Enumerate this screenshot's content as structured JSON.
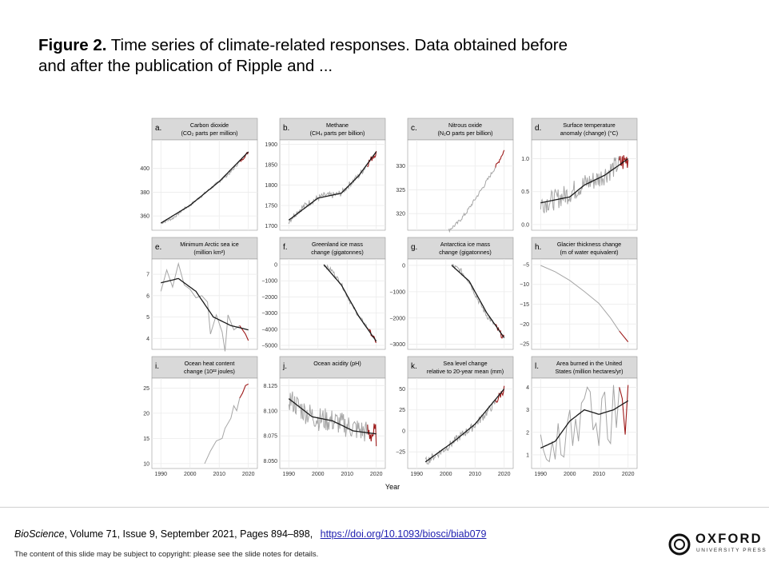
{
  "slide": {
    "title_bold": "Figure 2.",
    "title_rest": " Time series of climate-related responses. Data obtained before and after the publication of Ripple and ..."
  },
  "citation": {
    "journal": "BioScience",
    "details": ", Volume 71, Issue 9, September 2021, Pages 894–898, ",
    "doi": "https://doi.org/10.1093/biosci/biab079"
  },
  "copyright": "The content of this slide may be subject to copyright: please see the slide notes for details.",
  "logo": {
    "word": "OXFORD",
    "sub": "UNIVERSITY PRESS"
  },
  "colors": {
    "before": "#a6a6a6",
    "after": "#9e1b1b",
    "trend": "#1a1a1a",
    "strip": "#d9d9d9",
    "grid": "#ebebeb"
  },
  "chart_data": {
    "type": "line",
    "x_label": "Year",
    "x_ticks": [
      1990,
      2000,
      2010,
      2020
    ],
    "panels": [
      {
        "letter": "a.",
        "title": [
          "Carbon dioxide",
          "(CO₂ parts per million)"
        ],
        "yticks": [
          360,
          380,
          400
        ],
        "yticklabels": [
          "360",
          "380",
          "400"
        ],
        "ylim": [
          350,
          422
        ],
        "series": [
          [
            1990,
            354
          ],
          [
            1992,
            356
          ],
          [
            1994,
            358
          ],
          [
            1996,
            362
          ],
          [
            1998,
            366
          ],
          [
            2000,
            369
          ],
          [
            2002,
            373
          ],
          [
            2004,
            377
          ],
          [
            2006,
            381
          ],
          [
            2008,
            385
          ],
          [
            2010,
            389
          ],
          [
            2012,
            393
          ],
          [
            2014,
            397
          ],
          [
            2016,
            403
          ],
          [
            2018,
            408
          ],
          [
            2020,
            414
          ]
        ],
        "recent_from": 2017,
        "noise": 1.2,
        "trend": [
          [
            1990,
            354
          ],
          [
            2000,
            369
          ],
          [
            2010,
            389
          ],
          [
            2020,
            414
          ]
        ]
      },
      {
        "letter": "b.",
        "title": [
          "Methane",
          "(CH₄ parts per billion)"
        ],
        "yticks": [
          1700,
          1750,
          1800,
          1850,
          1900
        ],
        "yticklabels": [
          "1700",
          "1750",
          "1800",
          "1850",
          "1900"
        ],
        "ylim": [
          1695,
          1905
        ],
        "series": [
          [
            1990,
            1712
          ],
          [
            1993,
            1735
          ],
          [
            1996,
            1752
          ],
          [
            1999,
            1765
          ],
          [
            2002,
            1774
          ],
          [
            2005,
            1775
          ],
          [
            2008,
            1780
          ],
          [
            2011,
            1803
          ],
          [
            2014,
            1823
          ],
          [
            2017,
            1852
          ],
          [
            2020,
            1880
          ]
        ],
        "recent_from": 2017,
        "noise": 8,
        "trend": [
          [
            1990,
            1714
          ],
          [
            2000,
            1768
          ],
          [
            2008,
            1780
          ],
          [
            2014,
            1823
          ],
          [
            2020,
            1882
          ]
        ]
      },
      {
        "letter": "c.",
        "title": [
          "Nitrous oxide",
          "(N₂O parts per billion)"
        ],
        "yticks": [
          320,
          325,
          330
        ],
        "yticklabels": [
          "320",
          "325",
          "330"
        ],
        "ylim": [
          317,
          335
        ],
        "series": [
          [
            2001,
            316.5
          ],
          [
            2004,
            318
          ],
          [
            2007,
            320.2
          ],
          [
            2010,
            323
          ],
          [
            2013,
            325.8
          ],
          [
            2016,
            328.8
          ],
          [
            2018,
            330.8
          ],
          [
            2020,
            333.3
          ]
        ],
        "recent_from": 2017,
        "noise": 0.4,
        "trend": null
      },
      {
        "letter": "d.",
        "title": [
          "Surface temperature",
          "anomaly (change) (°C)"
        ],
        "yticks": [
          0.0,
          0.5,
          1.0
        ],
        "yticklabels": [
          "0.0",
          "0.5",
          "1.0"
        ],
        "ylim": [
          -0.05,
          1.25
        ],
        "series": [
          [
            1990,
            0.32
          ],
          [
            1995,
            0.38
          ],
          [
            2000,
            0.48
          ],
          [
            2005,
            0.62
          ],
          [
            2010,
            0.7
          ],
          [
            2015,
            0.86
          ],
          [
            2020,
            1.0
          ]
        ],
        "recent_from": 2017,
        "noise": 0.16,
        "trend": [
          [
            1990,
            0.33
          ],
          [
            2000,
            0.42
          ],
          [
            2005,
            0.6
          ],
          [
            2012,
            0.75
          ],
          [
            2020,
            1.0
          ]
        ]
      },
      {
        "letter": "e.",
        "title": [
          "Minimum Arctic sea ice",
          "(million km²)"
        ],
        "yticks": [
          4,
          5,
          6,
          7
        ],
        "yticklabels": [
          "4",
          "5",
          "6",
          "7"
        ],
        "ylim": [
          3.6,
          7.6
        ],
        "series": [
          [
            1990,
            6.2
          ],
          [
            1992,
            7.2
          ],
          [
            1994,
            6.4
          ],
          [
            1996,
            7.5
          ],
          [
            1998,
            6.5
          ],
          [
            2000,
            6.3
          ],
          [
            2002,
            5.9
          ],
          [
            2004,
            6.0
          ],
          [
            2006,
            5.7
          ],
          [
            2007,
            4.2
          ],
          [
            2009,
            5.1
          ],
          [
            2011,
            4.3
          ],
          [
            2012,
            3.4
          ],
          [
            2013,
            5.1
          ],
          [
            2015,
            4.4
          ],
          [
            2017,
            4.6
          ],
          [
            2019,
            4.2
          ],
          [
            2020,
            3.9
          ]
        ],
        "recent_from": 2017,
        "noise": 0,
        "trend": [
          [
            1990,
            6.6
          ],
          [
            1996,
            6.8
          ],
          [
            2002,
            6.2
          ],
          [
            2008,
            5.0
          ],
          [
            2014,
            4.6
          ],
          [
            2020,
            4.4
          ]
        ]
      },
      {
        "letter": "f.",
        "title": [
          "Greenland ice mass",
          "change (gigatonnes)"
        ],
        "yticks": [
          0,
          -1000,
          -2000,
          -3000,
          -4000,
          -5000
        ],
        "yticklabels": [
          "0",
          "−1000",
          "−2000",
          "−3000",
          "−4000",
          "−5000"
        ],
        "ylim": [
          -5100,
          200
        ],
        "series": [
          [
            2002,
            0
          ],
          [
            2005,
            -400
          ],
          [
            2008,
            -1200
          ],
          [
            2011,
            -2300
          ],
          [
            2014,
            -3200
          ],
          [
            2017,
            -3900
          ],
          [
            2020,
            -4800
          ]
        ],
        "recent_from": 2017,
        "noise": 120,
        "trend": [
          [
            2002,
            0
          ],
          [
            2008,
            -1250
          ],
          [
            2014,
            -3200
          ],
          [
            2020,
            -4750
          ]
        ]
      },
      {
        "letter": "g.",
        "title": [
          "Antarctica ice mass",
          "change (gigatonnes)"
        ],
        "yticks": [
          0,
          -1000,
          -2000,
          -3000
        ],
        "yticklabels": [
          "0",
          "−1000",
          "−2000",
          "−3000"
        ],
        "ylim": [
          -3100,
          150
        ],
        "series": [
          [
            2002,
            0
          ],
          [
            2005,
            -200
          ],
          [
            2008,
            -600
          ],
          [
            2011,
            -1300
          ],
          [
            2014,
            -1900
          ],
          [
            2017,
            -2300
          ],
          [
            2020,
            -2800
          ]
        ],
        "recent_from": 2017,
        "noise": 110,
        "trend": [
          [
            2002,
            0
          ],
          [
            2008,
            -600
          ],
          [
            2014,
            -1800
          ],
          [
            2020,
            -2750
          ]
        ]
      },
      {
        "letter": "h.",
        "title": [
          "Glacier thickness change",
          "(m of water equivalent)"
        ],
        "yticks": [
          -5,
          -10,
          -15,
          -20,
          -25
        ],
        "yticklabels": [
          "−5",
          "−10",
          "−15",
          "−20",
          "−25"
        ],
        "ylim": [
          -25.8,
          -4.2
        ],
        "series": [
          [
            1990,
            -5.2
          ],
          [
            1995,
            -6.8
          ],
          [
            2000,
            -9
          ],
          [
            2005,
            -11.8
          ],
          [
            2010,
            -14.8
          ],
          [
            2014,
            -18.5
          ],
          [
            2017,
            -21.8
          ],
          [
            2020,
            -24.5
          ]
        ],
        "recent_from": 2017,
        "noise": 0,
        "trend": null
      },
      {
        "letter": "i.",
        "title": [
          "Ocean heat content",
          "change (10²² joules)"
        ],
        "yticks": [
          10,
          15,
          20,
          25
        ],
        "yticklabels": [
          "10",
          "15",
          "20",
          "25"
        ],
        "ylim": [
          9.5,
          26.5
        ],
        "series": [
          [
            2005,
            10
          ],
          [
            2007,
            12.5
          ],
          [
            2009,
            14.5
          ],
          [
            2011,
            15
          ],
          [
            2012,
            17
          ],
          [
            2014,
            19
          ],
          [
            2015,
            21.5
          ],
          [
            2016,
            20.5
          ],
          [
            2017,
            23
          ],
          [
            2018,
            24
          ],
          [
            2019,
            25.5
          ],
          [
            2020,
            25.8
          ]
        ],
        "recent_from": 2017,
        "noise": 0,
        "trend": null
      },
      {
        "letter": "j.",
        "title": [
          "Ocean acidity (pH)",
          ""
        ],
        "yticks": [
          8.05,
          8.075,
          8.1,
          8.125
        ],
        "yticklabels": [
          "8.050",
          "8.075",
          "8.100",
          "8.125"
        ],
        "ylim": [
          8.045,
          8.13
        ],
        "series": [
          [
            1990,
            8.112
          ],
          [
            1995,
            8.1
          ],
          [
            2000,
            8.092
          ],
          [
            2005,
            8.09
          ],
          [
            2010,
            8.085
          ],
          [
            2015,
            8.08
          ],
          [
            2020,
            8.076
          ]
        ],
        "recent_from": 2017,
        "noise": 0.012,
        "trend": [
          [
            1990,
            8.112
          ],
          [
            1998,
            8.094
          ],
          [
            2005,
            8.09
          ],
          [
            2012,
            8.08
          ],
          [
            2020,
            8.077
          ]
        ]
      },
      {
        "letter": "k.",
        "title": [
          "Sea level change",
          "relative to 20-year mean (mm)"
        ],
        "yticks": [
          -25,
          0,
          25,
          50
        ],
        "yticklabels": [
          "−25",
          "0",
          "25",
          "50"
        ],
        "ylim": [
          -42,
          60
        ],
        "series": [
          [
            1993,
            -37
          ],
          [
            1997,
            -28
          ],
          [
            2001,
            -18
          ],
          [
            2005,
            -6
          ],
          [
            2009,
            4
          ],
          [
            2013,
            18
          ],
          [
            2017,
            34
          ],
          [
            2020,
            50
          ]
        ],
        "recent_from": 2017,
        "noise": 5,
        "trend": [
          [
            1993,
            -37
          ],
          [
            2003,
            -12
          ],
          [
            2010,
            8
          ],
          [
            2020,
            50
          ]
        ]
      },
      {
        "letter": "l.",
        "title": [
          "Area burned in the United",
          "States (million hectares/yr)"
        ],
        "yticks": [
          1,
          2,
          3,
          4
        ],
        "yticklabels": [
          "1",
          "2",
          "3",
          "4"
        ],
        "ylim": [
          0.5,
          4.3
        ],
        "series": [
          [
            1990,
            1.9
          ],
          [
            1991,
            1.2
          ],
          [
            1992,
            0.8
          ],
          [
            1993,
            0.7
          ],
          [
            1994,
            1.6
          ],
          [
            1995,
            0.8
          ],
          [
            1996,
            2.4
          ],
          [
            1997,
            1.0
          ],
          [
            1998,
            0.9
          ],
          [
            1999,
            2.3
          ],
          [
            2000,
            3.0
          ],
          [
            2001,
            1.4
          ],
          [
            2002,
            2.6
          ],
          [
            2003,
            1.6
          ],
          [
            2004,
            3.3
          ],
          [
            2005,
            3.5
          ],
          [
            2006,
            4.0
          ],
          [
            2007,
            3.8
          ],
          [
            2008,
            2.1
          ],
          [
            2009,
            2.4
          ],
          [
            2010,
            1.4
          ],
          [
            2011,
            3.5
          ],
          [
            2012,
            3.8
          ],
          [
            2013,
            1.7
          ],
          [
            2014,
            1.5
          ],
          [
            2015,
            4.1
          ],
          [
            2016,
            2.2
          ],
          [
            2017,
            4.0
          ],
          [
            2018,
            3.5
          ],
          [
            2019,
            1.9
          ],
          [
            2020,
            4.1
          ]
        ],
        "recent_from": 2017,
        "noise": 0,
        "trend": [
          [
            1990,
            1.3
          ],
          [
            1995,
            1.6
          ],
          [
            2000,
            2.5
          ],
          [
            2005,
            3.0
          ],
          [
            2010,
            2.8
          ],
          [
            2015,
            3.0
          ],
          [
            2020,
            3.4
          ]
        ]
      }
    ]
  }
}
